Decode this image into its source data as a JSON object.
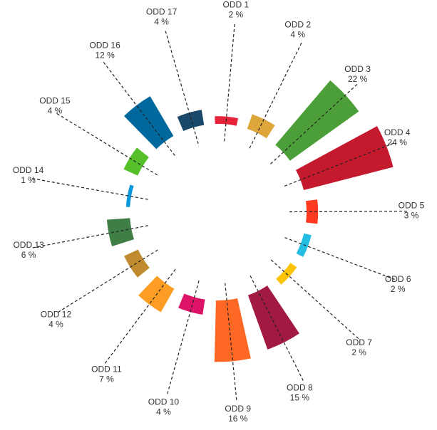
{
  "chart_data": {
    "type": "radial-bar",
    "categories": [
      "ODD 1",
      "ODD 2",
      "ODD 3",
      "ODD 4",
      "ODD 5",
      "ODD 6",
      "ODD 7",
      "ODD 8",
      "ODD 9",
      "ODD 10",
      "ODD 11",
      "ODD 12",
      "ODD 13",
      "ODD 14",
      "ODD 15",
      "ODD 16",
      "ODD 17"
    ],
    "values": [
      2,
      4,
      22,
      24,
      3,
      2,
      2,
      15,
      16,
      4,
      7,
      4,
      6,
      1,
      4,
      12,
      4
    ],
    "value_labels": [
      "2 %",
      "4 %",
      "22 %",
      "24 %",
      "3 %",
      "2 %",
      "2 %",
      "15 %",
      "16 %",
      "4 %",
      "7 %",
      "4 %",
      "6 %",
      "1 %",
      "4 %",
      "12 %",
      "4 %"
    ],
    "colors": [
      "#e5243b",
      "#dda63a",
      "#4c9f38",
      "#c5192d",
      "#ff3a21",
      "#26bde2",
      "#fcc30b",
      "#a21942",
      "#fd6925",
      "#dd1367",
      "#fd9d24",
      "#bf8b2e",
      "#3f7e44",
      "#0a97d9",
      "#56c02b",
      "#00689d",
      "#19486a"
    ]
  }
}
